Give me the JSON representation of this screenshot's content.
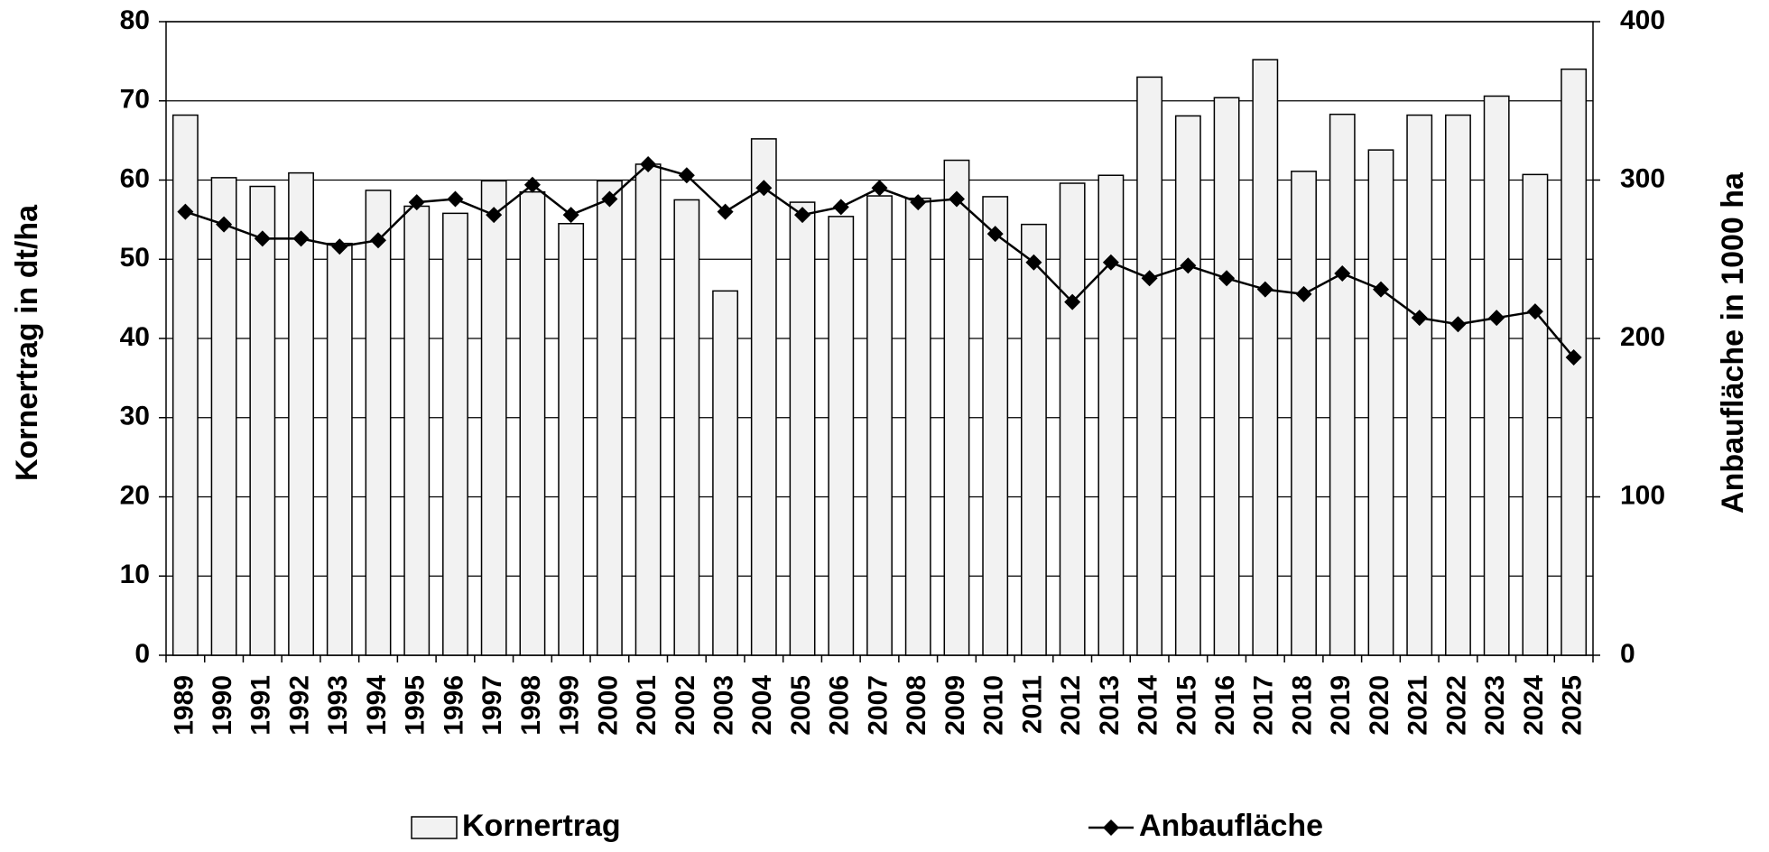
{
  "chart_data": {
    "type": "bar",
    "categories": [
      "1989",
      "1990",
      "1991",
      "1992",
      "1993",
      "1994",
      "1995",
      "1996",
      "1997",
      "1998",
      "1999",
      "2000",
      "2001",
      "2002",
      "2003",
      "2004",
      "2005",
      "2006",
      "2007",
      "2008",
      "2009",
      "2010",
      "2011",
      "2012",
      "2013",
      "2014",
      "2015",
      "2016",
      "2017",
      "2018",
      "2019",
      "2020",
      "2021",
      "2022",
      "2023",
      "2024",
      "2025"
    ],
    "series": [
      {
        "name": "Kornertrag",
        "type": "bar",
        "color": "#f2f2f2",
        "values": [
          68.2,
          60.3,
          59.2,
          60.9,
          52.0,
          58.7,
          56.7,
          55.8,
          59.9,
          58.5,
          54.5,
          59.9,
          62.0,
          57.5,
          46.0,
          65.2,
          57.2,
          55.4,
          58.0,
          57.7,
          62.5,
          57.9,
          54.4,
          59.6,
          60.6,
          73.0,
          68.1,
          70.4,
          75.2,
          61.1,
          68.3,
          63.8,
          68.2,
          68.2,
          70.6,
          60.7,
          74.0
        ]
      },
      {
        "name": "Anbaufläche",
        "type": "line",
        "axis": "y2",
        "color": "#000000",
        "values": [
          280,
          272,
          263,
          263,
          258,
          262,
          286,
          288,
          278,
          297,
          278,
          288,
          310,
          303,
          280,
          295,
          278,
          283,
          295,
          286,
          288,
          266,
          248,
          223,
          248,
          238,
          246,
          238,
          231,
          228,
          241,
          231,
          213,
          209,
          213,
          217,
          188
        ]
      }
    ],
    "ylabel": "Kornertrag in dt/ha",
    "y2label": "Anbaufläche in 1000 ha",
    "ylim": [
      0,
      80
    ],
    "yticks": [
      0,
      10,
      20,
      30,
      40,
      50,
      60,
      70,
      80
    ],
    "y2lim": [
      0,
      400
    ],
    "y2ticks": [
      0,
      100,
      200,
      300,
      400
    ],
    "grid": true,
    "legend": "bottom"
  }
}
